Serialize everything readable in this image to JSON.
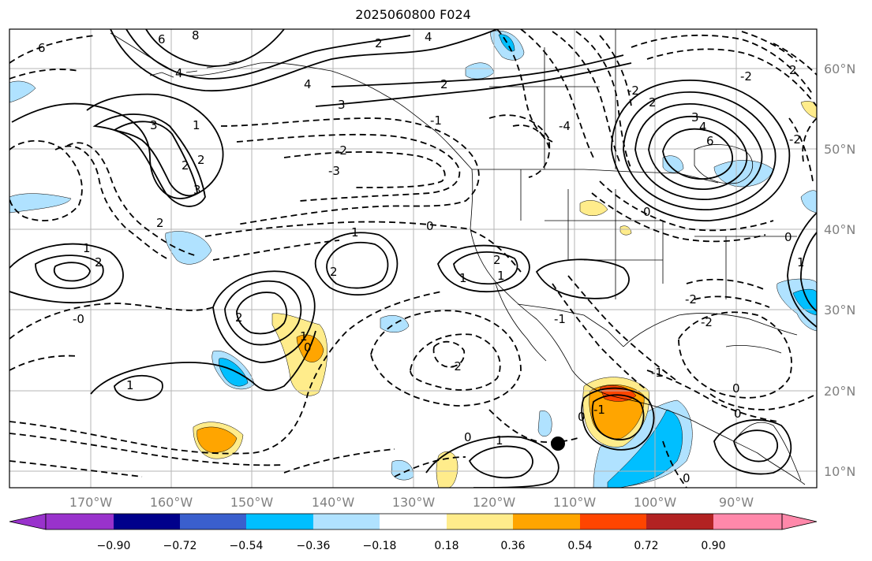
{
  "title": "2025060800 F024",
  "map": {
    "lon_labels": [
      "170°W",
      "160°W",
      "150°W",
      "140°W",
      "130°W",
      "120°W",
      "110°W",
      "100°W",
      "90°W"
    ],
    "lat_labels": [
      "60°N",
      "50°N",
      "40°N",
      "30°N",
      "20°N",
      "10°N"
    ],
    "contour_labels": [
      "6",
      "8",
      "4",
      "2",
      "2",
      "4",
      "6",
      "4",
      "3",
      "2",
      "3",
      "1",
      "2",
      "3",
      "2",
      "1",
      "2",
      "-3",
      "-2",
      "-1",
      "-4",
      "-2",
      "0",
      "2",
      "3",
      "4",
      "6",
      "0",
      "1",
      "1",
      "2",
      "2",
      "1",
      "2",
      "1",
      "-0",
      "0",
      "0",
      "-2",
      "-2",
      "-1",
      "1",
      "-2",
      "-1",
      "0",
      "1",
      "0",
      "-1",
      "0",
      "0",
      "0",
      "1",
      "2",
      "-2",
      "-2"
    ],
    "marker": "black-dot"
  },
  "colorbar": {
    "colors": [
      "#9932cc",
      "#00008b",
      "#3a5fcd",
      "#00bfff",
      "#b0e2ff",
      "#ffffff",
      "#ffec8b",
      "#ffa500",
      "#ff4500",
      "#b22222",
      "#ff88aa"
    ],
    "ticks": [
      "−0.90",
      "−0.72",
      "−0.54",
      "−0.36",
      "−0.18",
      "0.18",
      "0.36",
      "0.54",
      "0.72",
      "0.90"
    ]
  }
}
